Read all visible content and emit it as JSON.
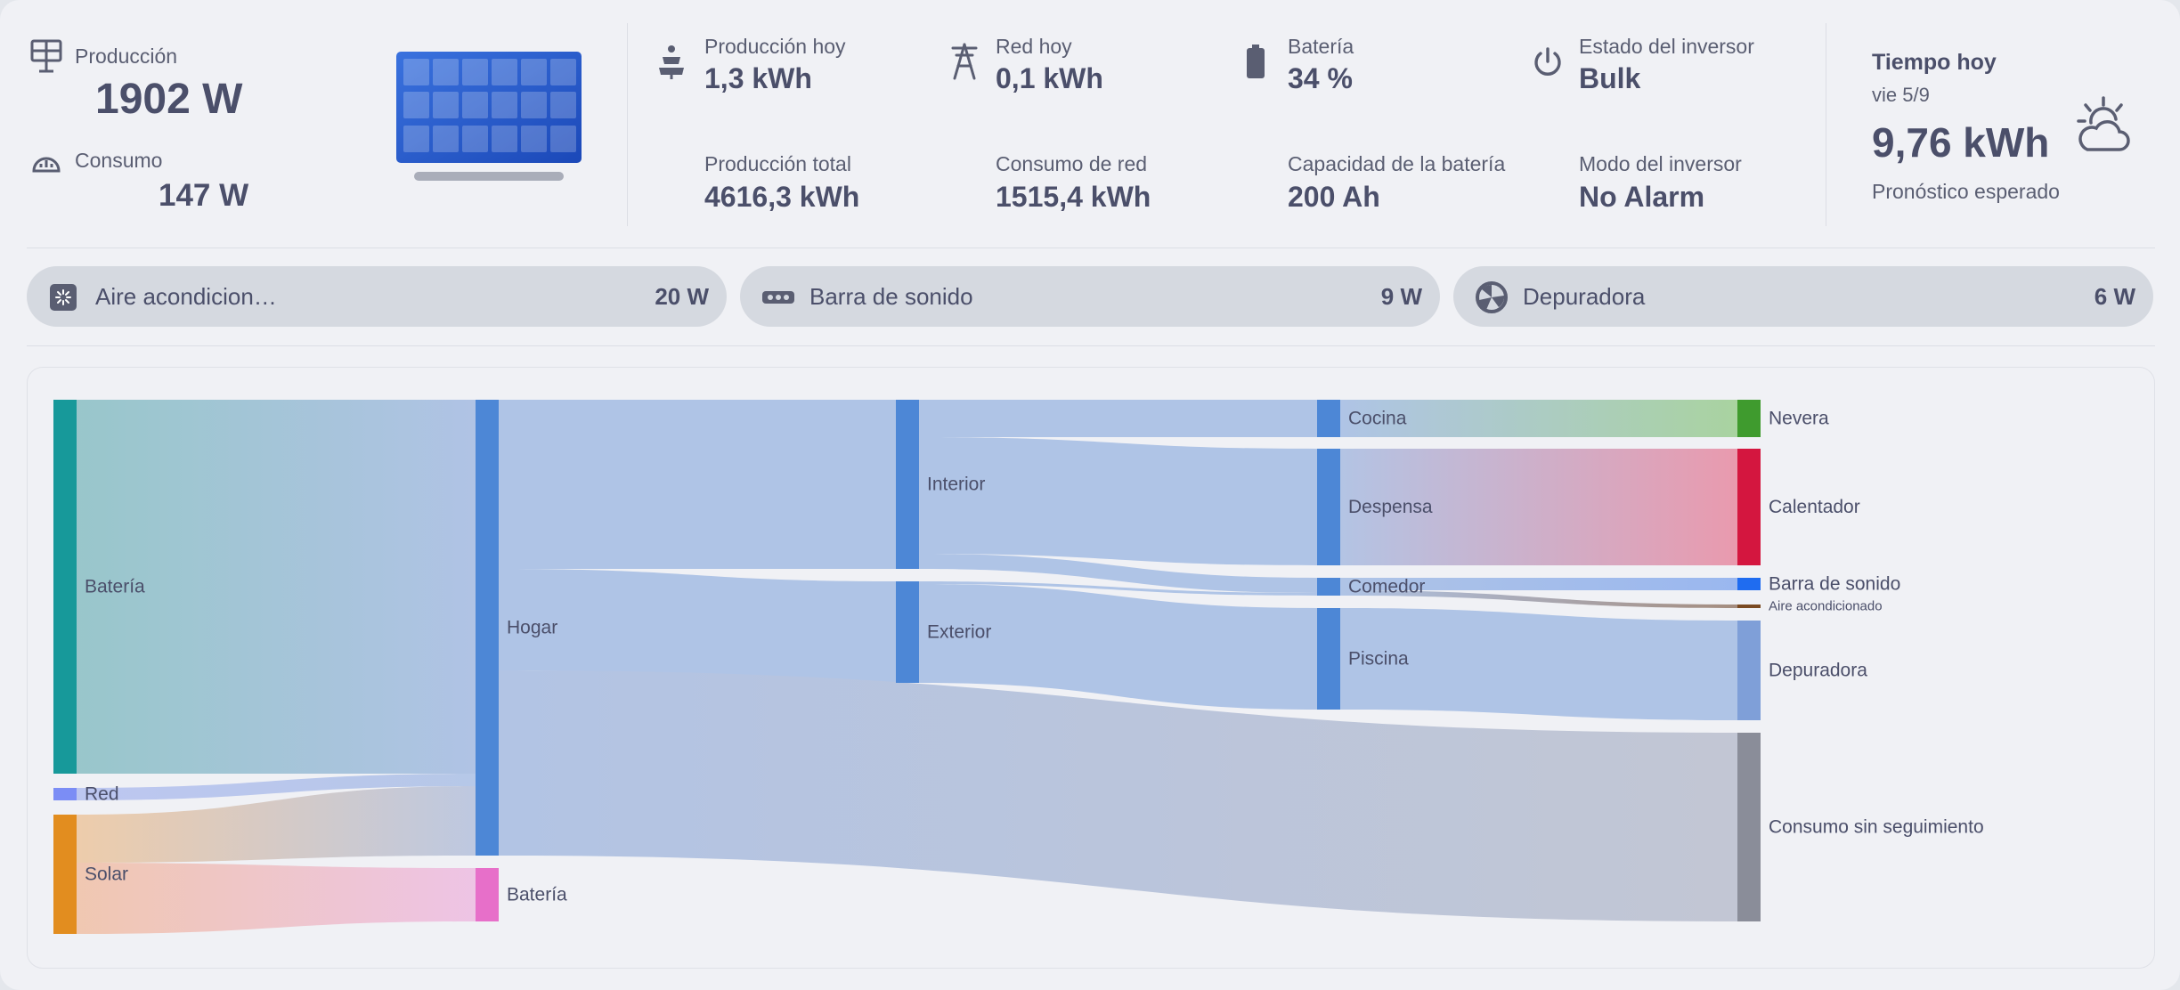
{
  "summary": {
    "production_label": "Producción",
    "production_value": "1902 W",
    "consumption_label": "Consumo",
    "consumption_value": "147 W"
  },
  "stats": [
    {
      "label": "Producción hoy",
      "value": "1,3 kWh",
      "icon": "solar-tower-icon"
    },
    {
      "label": "Red hoy",
      "value": "0,1 kWh",
      "icon": "transmission-tower-icon"
    },
    {
      "label": "Batería",
      "value": "34 %",
      "icon": "battery-icon"
    },
    {
      "label": "Estado del inversor",
      "value": "Bulk",
      "icon": "power-icon"
    },
    {
      "label": "Producción total",
      "value": "4616,3 kWh"
    },
    {
      "label": "Consumo de red",
      "value": "1515,4 kWh"
    },
    {
      "label": "Capacidad de la batería",
      "value": "200 Ah"
    },
    {
      "label": "Modo del inversor",
      "value": "No Alarm"
    }
  ],
  "weather": {
    "title": "Tiempo hoy",
    "date": "vie 5/9",
    "value": "9,76 kWh",
    "caption": "Pronóstico esperado",
    "icon": "partly-cloudy-icon"
  },
  "chips": [
    {
      "name": "Aire acondicion…",
      "value": "20 W",
      "icon": "air-conditioner-icon"
    },
    {
      "name": "Barra de sonido",
      "value": "9 W",
      "icon": "soundbar-icon"
    },
    {
      "name": "Depuradora",
      "value": "6 W",
      "icon": "pool-pump-icon"
    }
  ],
  "sankey": {
    "nodes": [
      {
        "id": "bat_src",
        "label": "Batería",
        "color": "#17999a"
      },
      {
        "id": "red",
        "label": "Red",
        "color": "#7b8df5"
      },
      {
        "id": "solar",
        "label": "Solar",
        "color": "#e28d1f"
      },
      {
        "id": "hogar",
        "label": "Hogar",
        "color": "#4d87d6"
      },
      {
        "id": "bat_dst",
        "label": "Batería",
        "color": "#e76fc9"
      },
      {
        "id": "interior",
        "label": "Interior",
        "color": "#4d87d6"
      },
      {
        "id": "exterior",
        "label": "Exterior",
        "color": "#4d87d6"
      },
      {
        "id": "cocina",
        "label": "Cocina",
        "color": "#4d87d6"
      },
      {
        "id": "despensa",
        "label": "Despensa",
        "color": "#4d87d6"
      },
      {
        "id": "comedor",
        "label": "Comedor",
        "color": "#4d87d6"
      },
      {
        "id": "piscina",
        "label": "Piscina",
        "color": "#4d87d6"
      },
      {
        "id": "nevera",
        "label": "Nevera",
        "color": "#3f9b2e"
      },
      {
        "id": "calentador",
        "label": "Calentador",
        "color": "#d4163f"
      },
      {
        "id": "barra",
        "label": "Barra de sonido",
        "color": "#1f6cf0"
      },
      {
        "id": "aire",
        "label": "Aire acondicionado",
        "color": "#7a4a22"
      },
      {
        "id": "depuradora",
        "label": "Depuradora",
        "color": "#7f9fd8"
      },
      {
        "id": "sin_seg",
        "label": "Consumo sin seguimiento",
        "color": "#8a8d99"
      }
    ]
  }
}
